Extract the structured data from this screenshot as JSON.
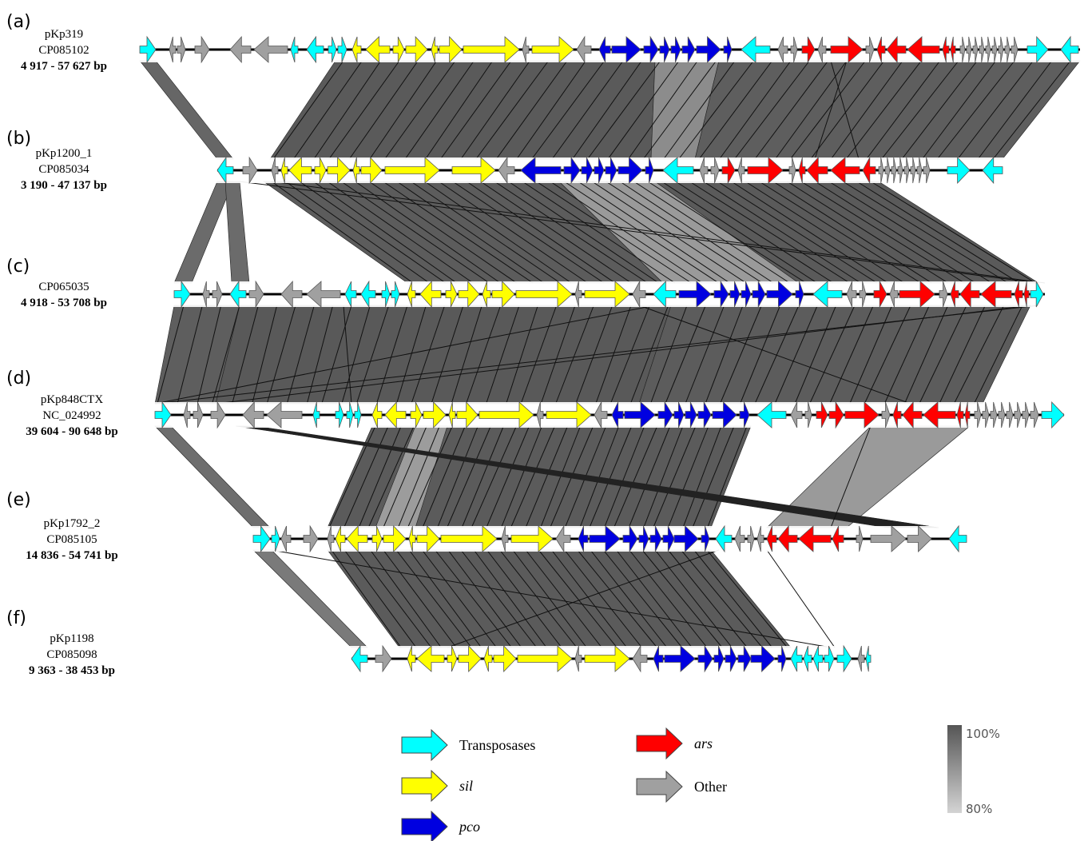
{
  "tracks": [
    {
      "letter": "(a)",
      "lines": [
        "pKp319",
        "CP085102",
        "4 917 - 57 627 bp"
      ]
    },
    {
      "letter": "(b)",
      "lines": [
        "pKp1200_1",
        "CP085034",
        "3 190 - 47 137 bp"
      ]
    },
    {
      "letter": "(c)",
      "lines": [
        "CP065035",
        "4 918 - 53 708 bp"
      ]
    },
    {
      "letter": "(d)",
      "lines": [
        "pKp848CTX",
        "NC_024992",
        "39 604 - 90 648 bp"
      ]
    },
    {
      "letter": "(e)",
      "lines": [
        "pKp1792_2",
        "CP085105",
        "14 836 - 54 741 bp"
      ]
    },
    {
      "letter": "(f)",
      "lines": [
        "pKp1198",
        "CP085098",
        "9 363 - 38 453 bp"
      ]
    }
  ],
  "legend": [
    {
      "key": "transposase",
      "label": "Transposases",
      "italic": false
    },
    {
      "key": "sil",
      "label": "sil",
      "italic": true
    },
    {
      "key": "pco",
      "label": "pco",
      "italic": true
    },
    {
      "key": "ars",
      "label": "ars",
      "italic": true
    },
    {
      "key": "other",
      "label": "Other",
      "italic": false
    }
  ],
  "colors": {
    "transposase": "#00ffff",
    "sil": "#ffff00",
    "pco": "#0000e0",
    "ars": "#ff0000",
    "other": "#a0a0a0",
    "identity_high": "#555555",
    "identity_low": "#d0d0d0"
  },
  "identity_scale": {
    "max_label": "100%",
    "min_label": "80%"
  }
}
